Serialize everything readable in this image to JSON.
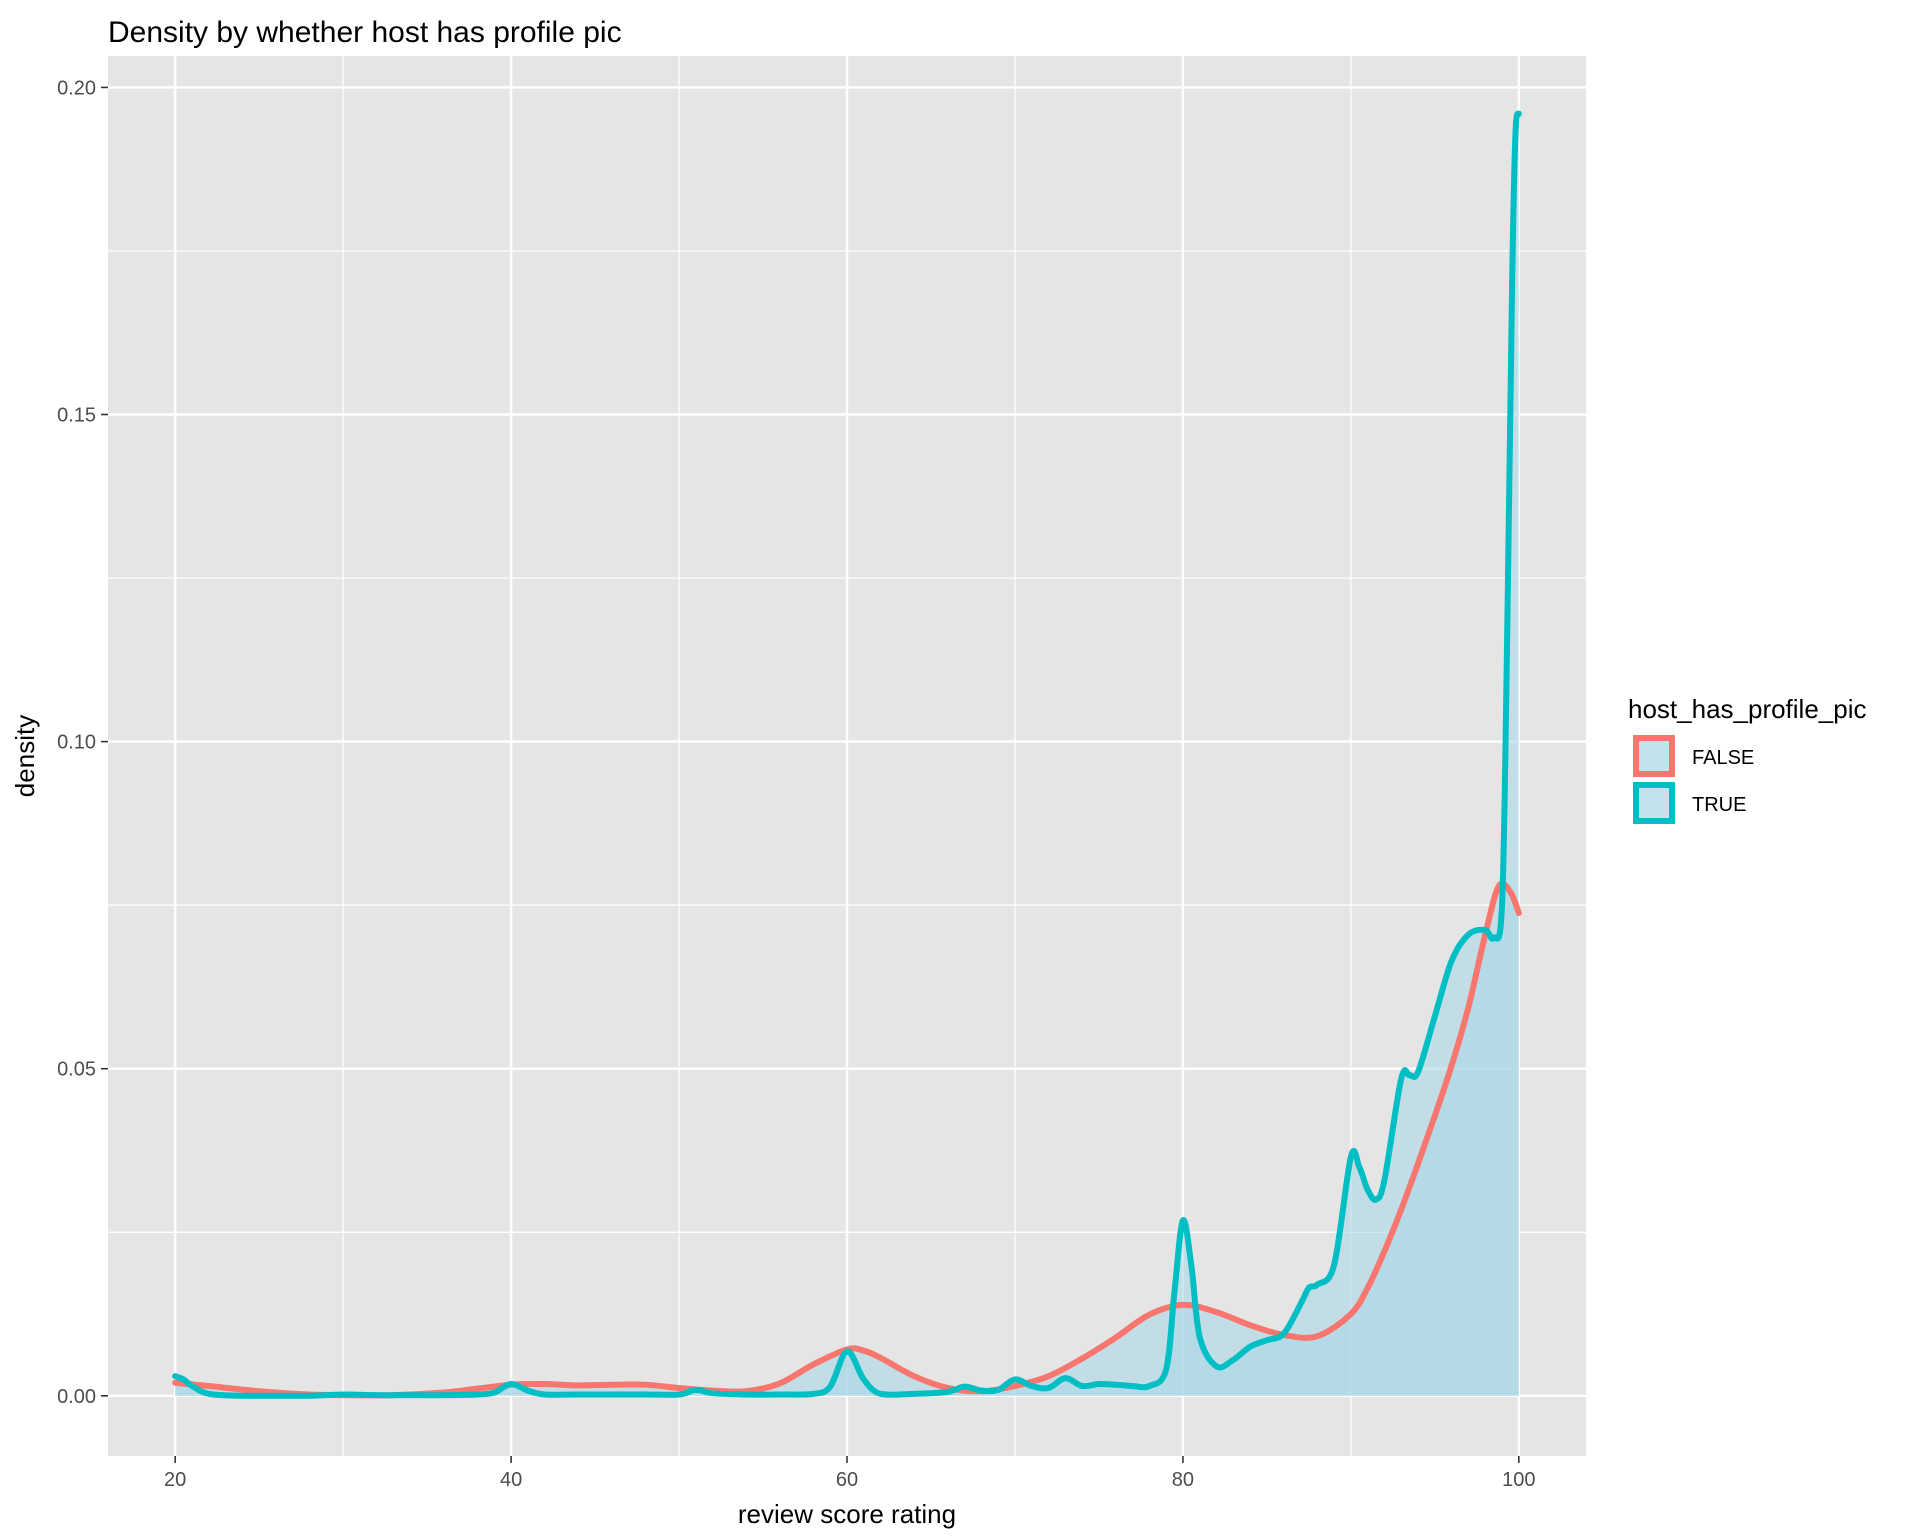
{
  "chart_data": {
    "type": "area",
    "title": "Density by whether host has profile pic",
    "xlabel": "review score rating",
    "ylabel": "density",
    "xlim": [
      16,
      104
    ],
    "ylim": [
      -0.0092,
      0.2048
    ],
    "x_ticks": [
      20,
      40,
      60,
      80,
      100
    ],
    "x_tick_labels": [
      "20",
      "40",
      "60",
      "80",
      "100"
    ],
    "y_ticks": [
      0.0,
      0.05,
      0.1,
      0.15,
      0.2
    ],
    "y_tick_labels": [
      "0.00",
      "0.05",
      "0.10",
      "0.15",
      "0.20"
    ],
    "grid": true,
    "legend": {
      "title": "host_has_profile_pic",
      "position": "right"
    },
    "fill_color": "#add8e6",
    "panel_background": "#e5e5e5",
    "series": [
      {
        "name": "FALSE",
        "color": "#f8766d",
        "x": [
          20,
          22,
          25,
          28,
          30,
          33,
          36,
          38,
          40,
          42,
          44,
          46,
          48,
          50,
          52,
          54,
          56,
          58,
          60,
          61,
          62,
          64,
          66,
          68,
          70,
          72,
          74,
          76,
          78,
          80,
          82,
          84,
          86,
          88,
          90,
          91,
          92,
          93,
          94,
          95,
          96,
          97,
          98,
          98.8,
          99.5,
          100
        ],
        "values": [
          0.002,
          0.0015,
          0.0007,
          0.0002,
          0.0001,
          0.0001,
          0.0005,
          0.0011,
          0.0017,
          0.0018,
          0.0016,
          0.0017,
          0.0017,
          0.0012,
          0.0008,
          0.0007,
          0.0019,
          0.0048,
          0.0071,
          0.0069,
          0.0058,
          0.003,
          0.0012,
          0.0007,
          0.0015,
          0.003,
          0.0057,
          0.0089,
          0.0124,
          0.0139,
          0.0128,
          0.0108,
          0.0093,
          0.0091,
          0.0125,
          0.0165,
          0.0221,
          0.0285,
          0.0355,
          0.0428,
          0.0505,
          0.0594,
          0.0705,
          0.0779,
          0.077,
          0.0738
        ]
      },
      {
        "name": "TRUE",
        "color": "#00bfc4",
        "x": [
          20,
          20.5,
          21,
          22,
          24,
          26,
          28,
          30,
          32,
          34,
          36,
          38,
          39,
          40,
          41,
          42,
          44,
          46,
          48,
          50,
          51,
          52,
          54,
          56,
          58,
          59,
          60,
          61,
          62,
          64,
          66,
          67,
          68,
          69,
          70,
          71,
          72,
          73,
          74,
          75,
          76,
          77,
          78,
          79,
          79.5,
          80,
          80.5,
          81,
          82,
          83,
          84,
          85,
          86,
          87,
          87.5,
          88,
          89,
          90,
          90.5,
          91,
          91.5,
          92,
          93,
          93.5,
          94,
          95,
          96,
          97,
          98,
          98.5,
          99,
          99.3,
          99.6,
          99.8,
          100
        ],
        "values": [
          0.003,
          0.0025,
          0.0015,
          0.0003,
          0.0,
          0.0,
          0.0,
          0.0002,
          0.0001,
          0.0001,
          0.0001,
          0.0002,
          0.0005,
          0.0018,
          0.0008,
          0.0002,
          0.0002,
          0.0002,
          0.0002,
          0.0002,
          0.0009,
          0.0004,
          0.0002,
          0.0002,
          0.0003,
          0.0014,
          0.0068,
          0.0025,
          0.0003,
          0.0003,
          0.0006,
          0.0014,
          0.0008,
          0.0009,
          0.0025,
          0.0015,
          0.0012,
          0.0027,
          0.0015,
          0.0018,
          0.0017,
          0.0015,
          0.0015,
          0.004,
          0.016,
          0.0268,
          0.02,
          0.009,
          0.0045,
          0.0055,
          0.0075,
          0.0085,
          0.0095,
          0.014,
          0.0165,
          0.017,
          0.02,
          0.0365,
          0.035,
          0.0315,
          0.03,
          0.033,
          0.0485,
          0.049,
          0.0495,
          0.058,
          0.0665,
          0.0705,
          0.0712,
          0.07,
          0.075,
          0.115,
          0.17,
          0.193,
          0.196
        ]
      }
    ]
  }
}
